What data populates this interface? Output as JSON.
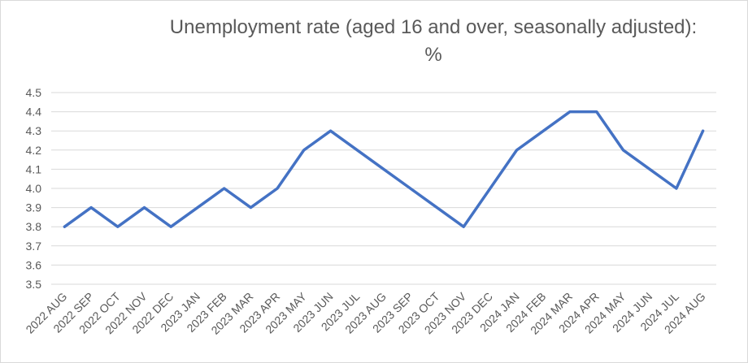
{
  "chart_data": {
    "type": "line",
    "title": "Unemployment rate (aged 16 and over, seasonally adjusted):",
    "title_line2": "%",
    "categories": [
      "2022 AUG",
      "2022 SEP",
      "2022 OCT",
      "2022 NOV",
      "2022 DEC",
      "2023 JAN",
      "2023 FEB",
      "2023 MAR",
      "2023 APR",
      "2023 MAY",
      "2023 JUN",
      "2023 JUL",
      "2023 AUG",
      "2023 SEP",
      "2023 OCT",
      "2023 NOV",
      "2023 DEC",
      "2024 JAN",
      "2024 FEB",
      "2024 MAR",
      "2024 APR",
      "2024 MAY",
      "2024 JUN",
      "2024 JUL",
      "2024 AUG"
    ],
    "series": [
      {
        "values": [
          3.8,
          3.9,
          3.8,
          3.9,
          3.8,
          3.9,
          4.0,
          3.9,
          4.0,
          4.2,
          4.3,
          4.2,
          4.1,
          4.0,
          3.9,
          3.8,
          4.0,
          4.2,
          4.3,
          4.4,
          4.4,
          4.2,
          4.1,
          4.0,
          4.3
        ],
        "color": "#4472c4"
      }
    ],
    "yticks": [
      "3.5",
      "3.6",
      "3.7",
      "3.8",
      "3.9",
      "4.0",
      "4.1",
      "4.2",
      "4.3",
      "4.4",
      "4.5"
    ],
    "ylim": [
      3.5,
      4.5
    ],
    "xlabel": "",
    "ylabel": "",
    "grid": true,
    "legend": "none"
  }
}
